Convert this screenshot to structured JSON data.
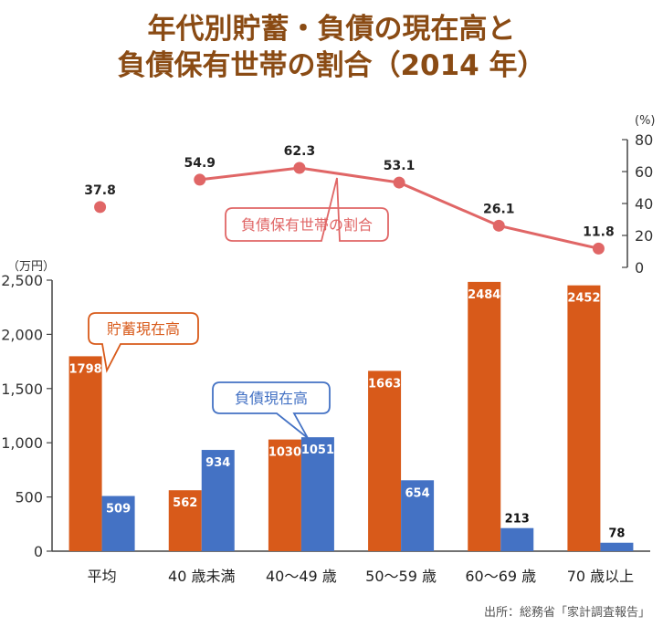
{
  "title_line1": "年代別貯蓄・負債の現在高と",
  "title_line2": "負債保有世帯の割合（2014 年）",
  "source": "出所：総務省「家計調査報告」",
  "colors": {
    "savings": "#d85a1a",
    "debt": "#4472c4",
    "ratio": "#e06666",
    "title": "#8a4b14"
  },
  "chart_data": [
    {
      "type": "bar",
      "categories": [
        "平均",
        "40 歳未満",
        "40〜49 歳",
        "50〜59 歳",
        "60〜69 歳",
        "70 歳以上"
      ],
      "series": [
        {
          "name": "貯蓄現在高",
          "values": [
            1798,
            562,
            1030,
            1663,
            2484,
            2452
          ]
        },
        {
          "name": "負債現在高",
          "values": [
            509,
            934,
            1051,
            654,
            213,
            78
          ]
        }
      ],
      "yunit": "（万円）",
      "ylim": [
        0,
        2500
      ],
      "yticks": [
        0,
        500,
        1000,
        1500,
        2000,
        2500
      ],
      "ytick_labels": [
        "0",
        "500",
        "1,000",
        "1,500",
        "2,000",
        "2,500"
      ]
    },
    {
      "type": "line",
      "categories": [
        "平均",
        "40 歳未満",
        "40〜49 歳",
        "50〜59 歳",
        "60〜69 歳",
        "70 歳以上"
      ],
      "series": [
        {
          "name": "負債保有世帯の割合",
          "values": [
            37.8,
            54.9,
            62.3,
            53.1,
            26.1,
            11.8
          ]
        }
      ],
      "connected_from_index": 1,
      "yunit": "(%)",
      "ylim": [
        0,
        80
      ],
      "yticks": [
        0,
        20,
        40,
        60,
        80
      ],
      "ytick_labels": [
        "0",
        "20",
        "40",
        "60",
        "80"
      ],
      "axis_side": "right"
    }
  ]
}
